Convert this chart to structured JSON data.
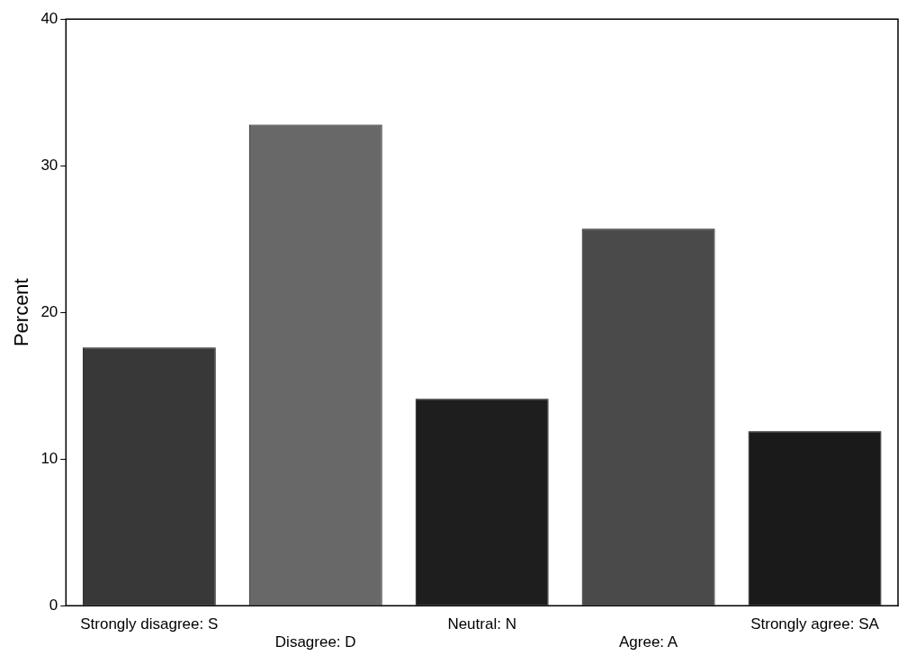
{
  "chart_data": {
    "type": "bar",
    "ylabel": "Percent",
    "categories": [
      "Strongly disagree: S",
      "Disagree: D",
      "Neutral: N",
      "Agree: A",
      "Strongly agree: SA"
    ],
    "values": [
      17.6,
      32.8,
      14.1,
      25.7,
      11.9
    ],
    "colors": [
      "#383838",
      "#686868",
      "#1e1e1e",
      "#4a4a4a",
      "#1a1a1a"
    ],
    "ylim": [
      0,
      40
    ],
    "yticks": [
      0,
      10,
      20,
      30,
      40
    ],
    "grid": false,
    "legend": false
  }
}
